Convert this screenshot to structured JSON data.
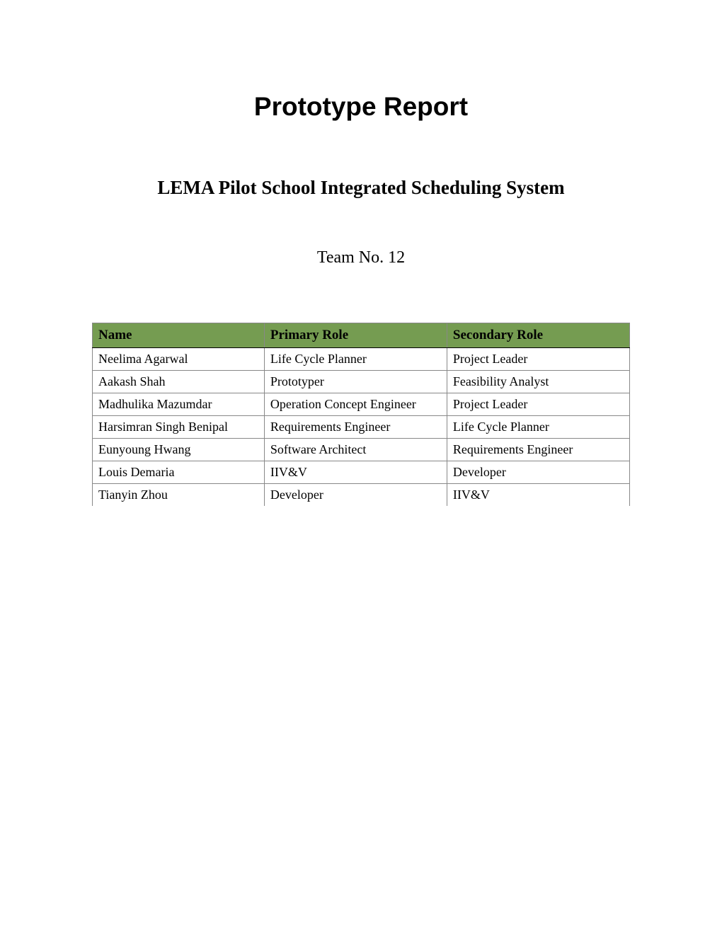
{
  "document": {
    "title": "Prototype Report",
    "subtitle": "LEMA Pilot School Integrated Scheduling System",
    "team_label": "Team No. 12"
  },
  "table": {
    "header_background": "#759c51",
    "border_color": "#888888",
    "columns": [
      "Name",
      "Primary Role",
      "Secondary Role"
    ],
    "rows": [
      [
        "Neelima Agarwal",
        "Life Cycle Planner",
        "Project Leader"
      ],
      [
        "Aakash Shah",
        "Prototyper",
        "Feasibility Analyst"
      ],
      [
        "Madhulika Mazumdar",
        "Operation Concept Engineer",
        "Project Leader"
      ],
      [
        "Harsimran Singh Benipal",
        "Requirements Engineer",
        "Life Cycle Planner"
      ],
      [
        "Eunyoung Hwang",
        "Software Architect",
        "Requirements Engineer"
      ],
      [
        "Louis Demaria",
        "IIV&V",
        "Developer"
      ],
      [
        "Tianyin Zhou",
        "Developer",
        "IIV&V"
      ]
    ]
  }
}
